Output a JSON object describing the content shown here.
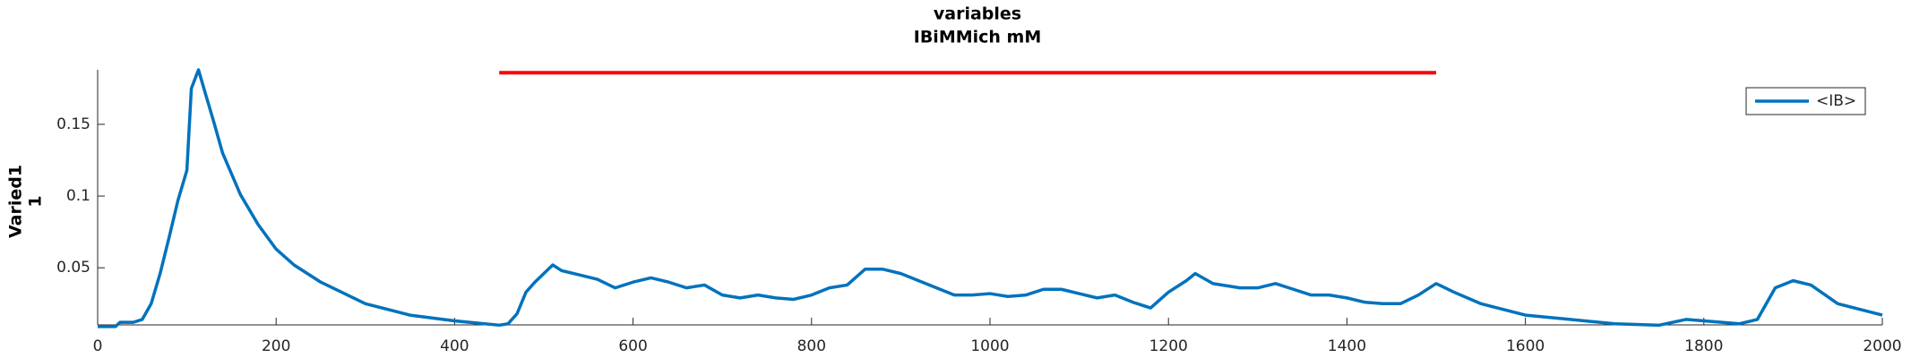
{
  "chart_data": {
    "type": "line",
    "title": [
      "variables",
      "IBiMMich mM"
    ],
    "ylabel": [
      "Varied1",
      "1"
    ],
    "x": [
      0,
      20,
      25,
      40,
      50,
      60,
      70,
      80,
      90,
      100,
      105,
      113,
      120,
      130,
      140,
      160,
      180,
      200,
      220,
      250,
      300,
      350,
      400,
      450,
      460,
      470,
      480,
      490,
      500,
      510,
      520,
      540,
      560,
      580,
      600,
      620,
      640,
      660,
      680,
      700,
      720,
      740,
      760,
      780,
      800,
      820,
      840,
      860,
      880,
      900,
      920,
      940,
      960,
      980,
      1000,
      1020,
      1040,
      1060,
      1080,
      1100,
      1120,
      1140,
      1160,
      1180,
      1200,
      1220,
      1230,
      1250,
      1280,
      1300,
      1320,
      1340,
      1360,
      1380,
      1400,
      1420,
      1440,
      1460,
      1480,
      1500,
      1520,
      1550,
      1600,
      1650,
      1700,
      1750,
      1780,
      1800,
      1840,
      1860,
      1880,
      1900,
      1920,
      1950,
      2000
    ],
    "series": [
      {
        "name": "<IB>",
        "color": "#0072bd",
        "values": [
          0.009,
          0.009,
          0.012,
          0.012,
          0.014,
          0.025,
          0.046,
          0.071,
          0.097,
          0.118,
          0.175,
          0.188,
          0.173,
          0.152,
          0.13,
          0.101,
          0.08,
          0.063,
          0.052,
          0.04,
          0.025,
          0.017,
          0.013,
          0.01,
          0.011,
          0.018,
          0.033,
          0.04,
          0.046,
          0.052,
          0.048,
          0.045,
          0.042,
          0.036,
          0.04,
          0.043,
          0.04,
          0.036,
          0.038,
          0.031,
          0.029,
          0.031,
          0.029,
          0.028,
          0.031,
          0.036,
          0.038,
          0.049,
          0.049,
          0.046,
          0.041,
          0.036,
          0.031,
          0.031,
          0.032,
          0.03,
          0.031,
          0.035,
          0.035,
          0.032,
          0.029,
          0.031,
          0.026,
          0.022,
          0.033,
          0.041,
          0.046,
          0.039,
          0.036,
          0.036,
          0.039,
          0.035,
          0.031,
          0.031,
          0.029,
          0.026,
          0.025,
          0.025,
          0.031,
          0.039,
          0.033,
          0.025,
          0.017,
          0.014,
          0.011,
          0.01,
          0.014,
          0.013,
          0.011,
          0.014,
          0.036,
          0.041,
          0.038,
          0.025,
          0.017
        ]
      }
    ],
    "reference_line": {
      "x": [
        450,
        1500
      ],
      "y": [
        0.186,
        0.186
      ],
      "color": "#ff0000"
    },
    "xlim": [
      0,
      2000
    ],
    "xticks": [
      0,
      200,
      400,
      600,
      800,
      1000,
      1200,
      1400,
      1600,
      1800,
      2000
    ],
    "ylim": [
      0.0102,
      0.188
    ],
    "yticks": [
      0.05,
      0.1,
      0.15
    ],
    "legend": "upper right"
  }
}
